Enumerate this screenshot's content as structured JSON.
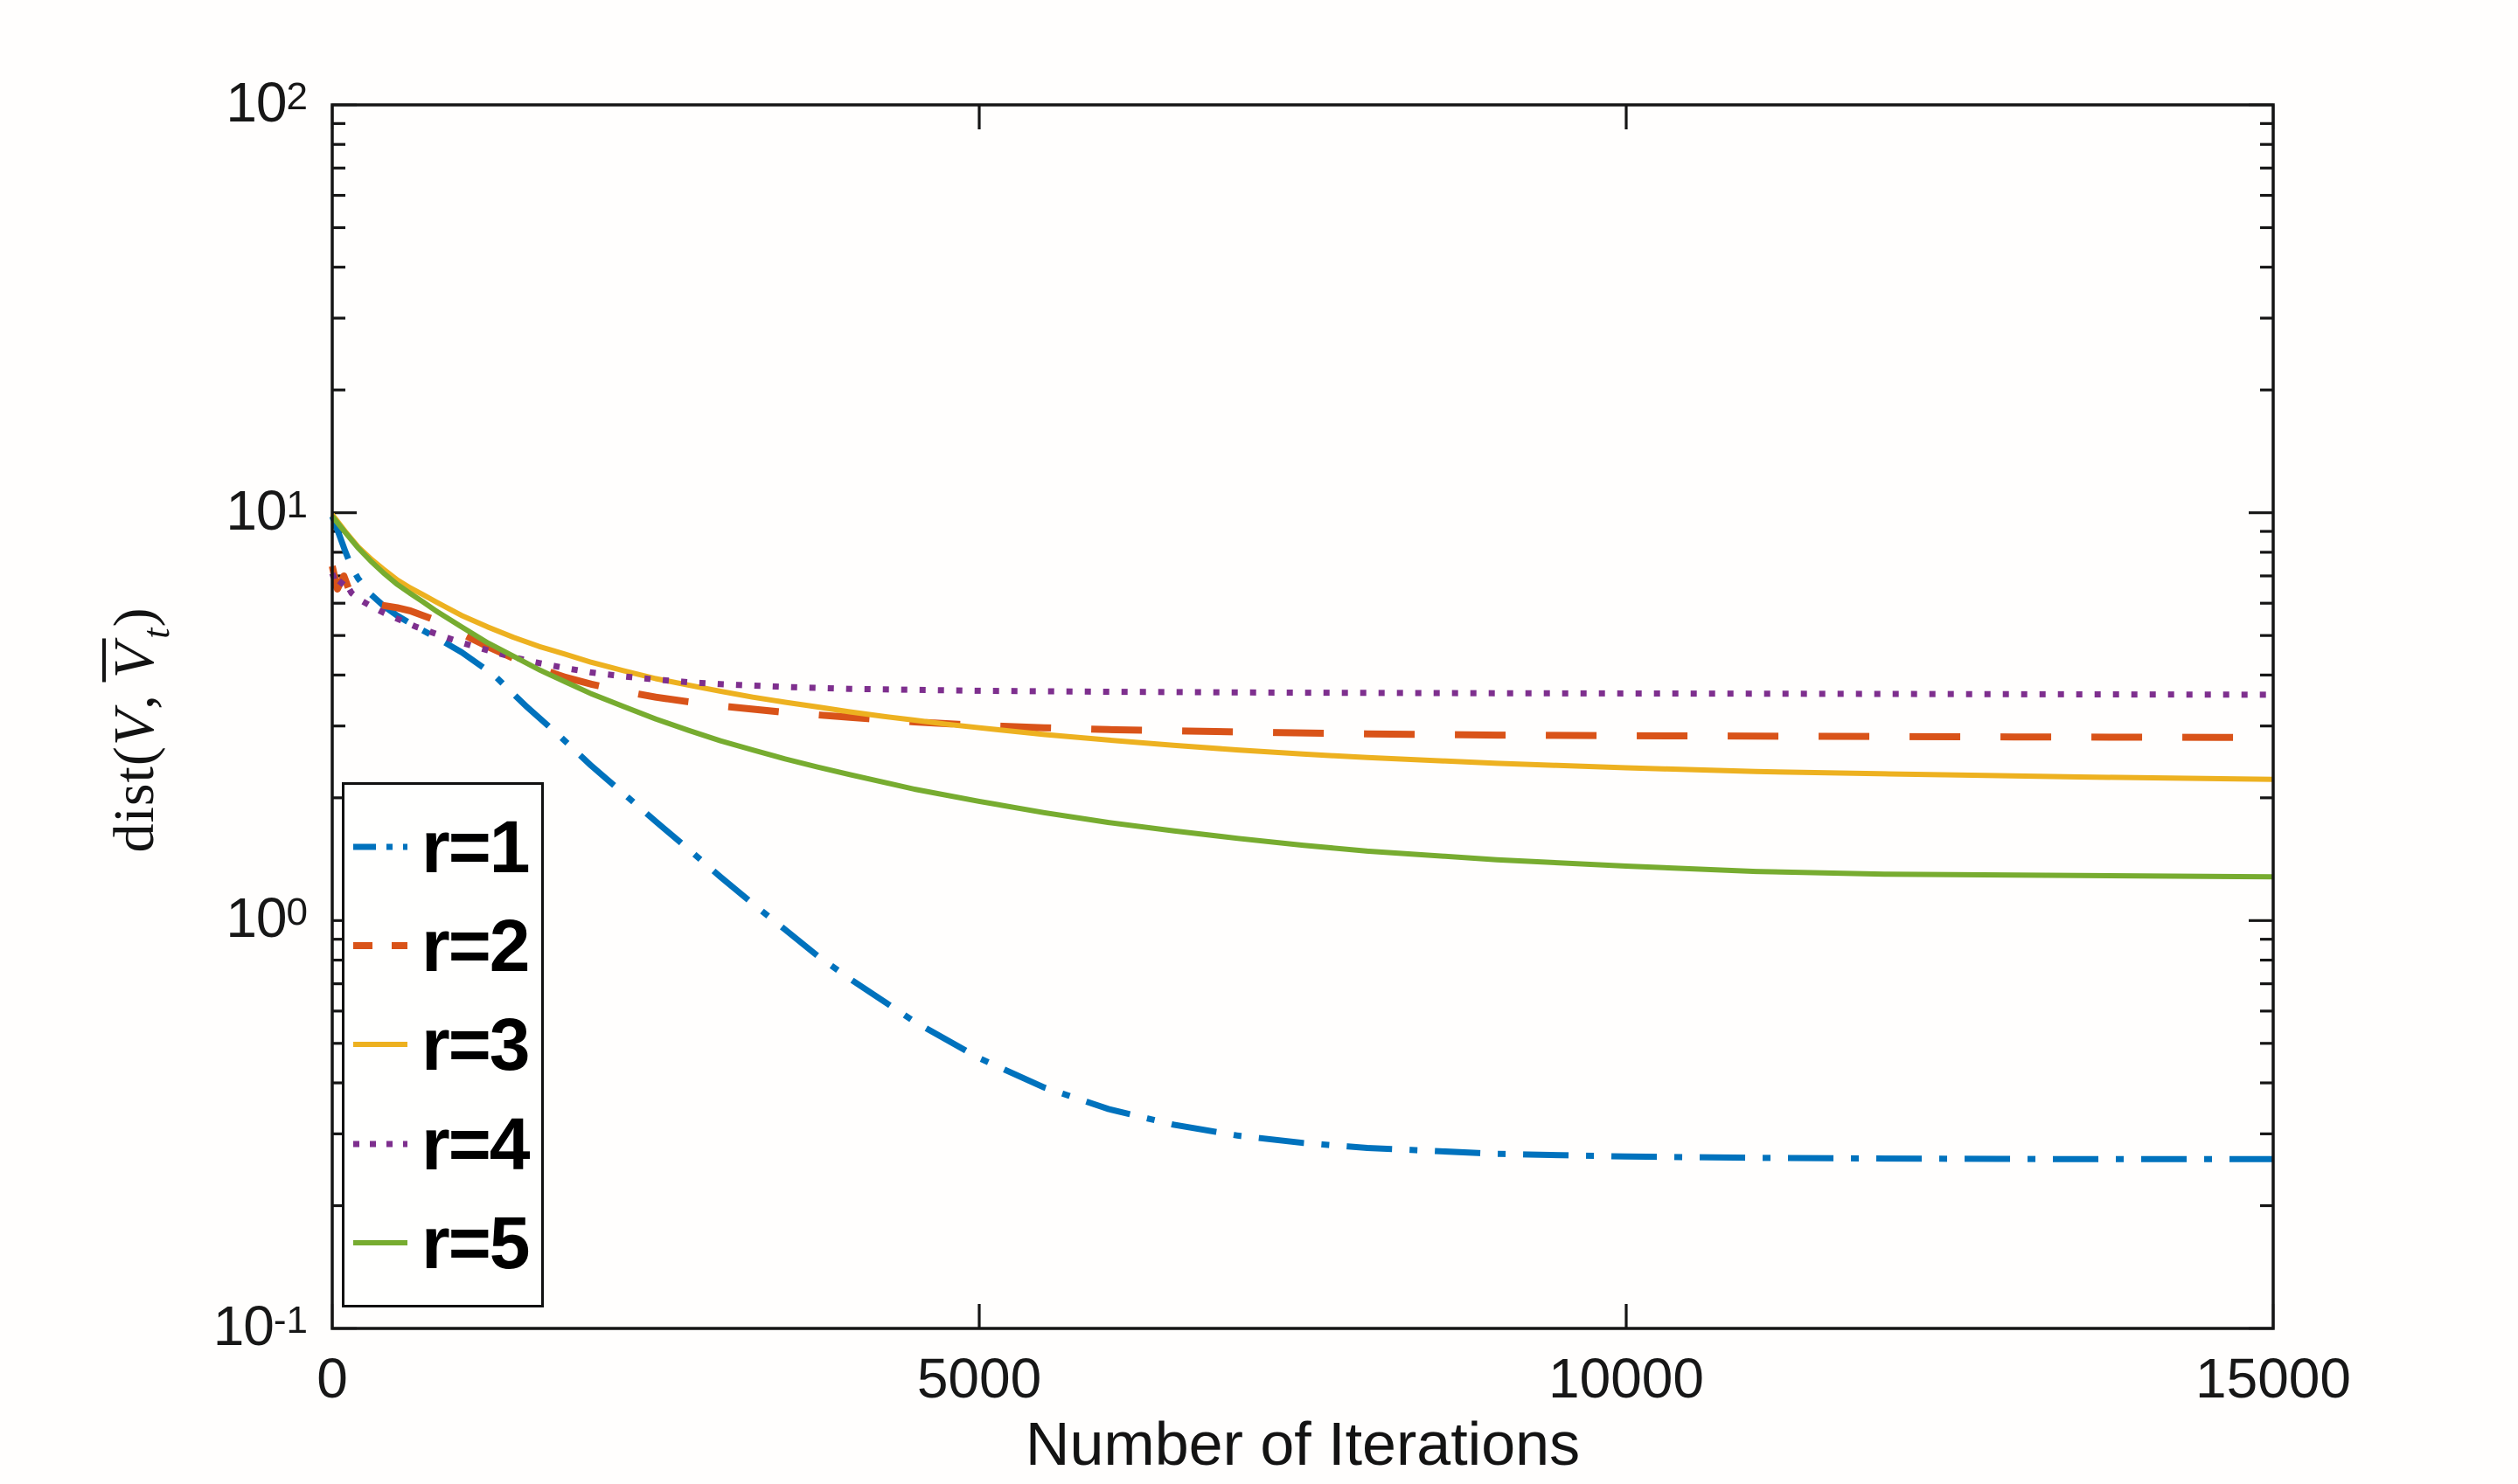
{
  "figure": {
    "background": "#ffffff",
    "frame_color": "#151515",
    "text_color": "#171717"
  },
  "chart_data": {
    "type": "line",
    "title": "",
    "xlabel": "Number of Iterations",
    "ylabel": "dist(V, V̄_t)",
    "x_axis": {
      "scale": "linear",
      "min": 0,
      "max": 15000,
      "ticks": [
        0,
        5000,
        10000,
        15000
      ],
      "tick_labels": [
        "0",
        "5000",
        "10000",
        "15000"
      ]
    },
    "y_axis": {
      "scale": "log",
      "min": 0.1,
      "max": 100,
      "tick_exponents": [
        2,
        1,
        0,
        -1
      ],
      "tick_base": "10",
      "minor_ticks": true
    },
    "grid": false,
    "legend_position": "lower-left",
    "series": [
      {
        "name": "r=1",
        "color": "#0072BD",
        "style": "dashdot",
        "width": 7,
        "x": [
          0,
          50,
          100,
          150,
          200,
          300,
          400,
          500,
          650,
          800,
          1000,
          1250,
          1500,
          1750,
          2000,
          2250,
          2500,
          2750,
          3000,
          3250,
          3500,
          3750,
          4000,
          4500,
          5000,
          5500,
          6000,
          6500,
          7000,
          7500,
          8000,
          9000,
          10000,
          11000,
          12000,
          13500,
          15000
        ],
        "y": [
          9.8,
          8.9,
          8.05,
          7.35,
          6.9,
          6.3,
          5.9,
          5.6,
          5.25,
          4.95,
          4.55,
          4.0,
          3.35,
          2.85,
          2.4,
          2.05,
          1.75,
          1.5,
          1.28,
          1.1,
          0.95,
          0.82,
          0.72,
          0.565,
          0.46,
          0.39,
          0.345,
          0.316,
          0.297,
          0.285,
          0.277,
          0.268,
          0.264,
          0.262,
          0.261,
          0.26,
          0.26
        ]
      },
      {
        "name": "r=2",
        "color": "#D95319",
        "style": "dashed",
        "width": 8,
        "x": [
          0,
          40,
          90,
          140,
          200,
          300,
          400,
          500,
          600,
          700,
          800,
          1000,
          1200,
          1400,
          1600,
          1800,
          2000,
          2250,
          2500,
          2750,
          3000,
          3500,
          4000,
          4500,
          5000,
          5500,
          6000,
          7000,
          8000,
          9000,
          10000,
          11500,
          13000,
          15000
        ],
        "y": [
          7.4,
          6.5,
          7.0,
          6.35,
          6.15,
          6.0,
          5.92,
          5.85,
          5.75,
          5.6,
          5.45,
          5.05,
          4.7,
          4.4,
          4.15,
          3.95,
          3.8,
          3.65,
          3.53,
          3.44,
          3.36,
          3.24,
          3.15,
          3.07,
          3.01,
          2.97,
          2.94,
          2.9,
          2.87,
          2.85,
          2.84,
          2.83,
          2.82,
          2.81
        ]
      },
      {
        "name": "r=3",
        "color": "#EDB120",
        "style": "solid",
        "width": 6,
        "x": [
          0,
          100,
          200,
          300,
          400,
          500,
          600,
          700,
          800,
          1000,
          1200,
          1400,
          1600,
          1800,
          2000,
          2250,
          2500,
          2750,
          3000,
          3250,
          3500,
          3750,
          4000,
          4250,
          4500,
          4750,
          5000,
          5500,
          6000,
          6500,
          7000,
          7500,
          8000,
          9000,
          10000,
          11000,
          12000,
          13500,
          15000
        ],
        "y": [
          9.9,
          9.0,
          8.25,
          7.7,
          7.25,
          6.85,
          6.55,
          6.3,
          6.05,
          5.6,
          5.25,
          4.95,
          4.7,
          4.5,
          4.3,
          4.1,
          3.92,
          3.78,
          3.65,
          3.53,
          3.43,
          3.34,
          3.25,
          3.17,
          3.1,
          3.03,
          2.97,
          2.86,
          2.77,
          2.69,
          2.62,
          2.56,
          2.51,
          2.43,
          2.37,
          2.32,
          2.29,
          2.25,
          2.22
        ]
      },
      {
        "name": "r=4",
        "color": "#7E2F8E",
        "style": "dotted",
        "width": 7,
        "x": [
          0,
          40,
          90,
          150,
          220,
          300,
          400,
          500,
          650,
          800,
          1000,
          1200,
          1400,
          1600,
          1800,
          2000,
          2250,
          2500,
          2750,
          3000,
          3500,
          4000,
          5000,
          6000,
          7500,
          9000,
          11000,
          13000,
          15000
        ],
        "y": [
          7.1,
          6.55,
          6.85,
          6.35,
          6.1,
          5.9,
          5.68,
          5.5,
          5.25,
          5.05,
          4.8,
          4.6,
          4.42,
          4.28,
          4.16,
          4.06,
          3.97,
          3.9,
          3.84,
          3.8,
          3.74,
          3.7,
          3.66,
          3.64,
          3.62,
          3.61,
          3.6,
          3.59,
          3.58
        ]
      },
      {
        "name": "r=5",
        "color": "#77AC30",
        "style": "solid",
        "width": 6,
        "x": [
          0,
          100,
          200,
          300,
          400,
          500,
          600,
          700,
          800,
          1000,
          1200,
          1400,
          1600,
          1800,
          2000,
          2250,
          2500,
          2750,
          3000,
          3250,
          3500,
          3750,
          4000,
          4500,
          5000,
          5500,
          6000,
          6500,
          7000,
          7500,
          8000,
          9000,
          10000,
          11000,
          12000,
          13500,
          15000
        ],
        "y": [
          9.8,
          8.95,
          8.2,
          7.6,
          7.1,
          6.68,
          6.35,
          6.05,
          5.75,
          5.25,
          4.8,
          4.45,
          4.12,
          3.85,
          3.6,
          3.35,
          3.12,
          2.93,
          2.76,
          2.62,
          2.49,
          2.38,
          2.28,
          2.1,
          1.96,
          1.84,
          1.74,
          1.66,
          1.59,
          1.53,
          1.48,
          1.41,
          1.36,
          1.32,
          1.3,
          1.29,
          1.28
        ]
      }
    ]
  },
  "labels": {
    "x_axis": "Number of Iterations",
    "y_axis_parts": {
      "pre": "dist(",
      "v1": "V",
      "comma": ",",
      "v2": "V",
      "sub": "t",
      "close": ")"
    }
  },
  "legend": {
    "entries": [
      "r=1",
      "r=2",
      "r=3",
      "r=4",
      "r=5"
    ]
  }
}
